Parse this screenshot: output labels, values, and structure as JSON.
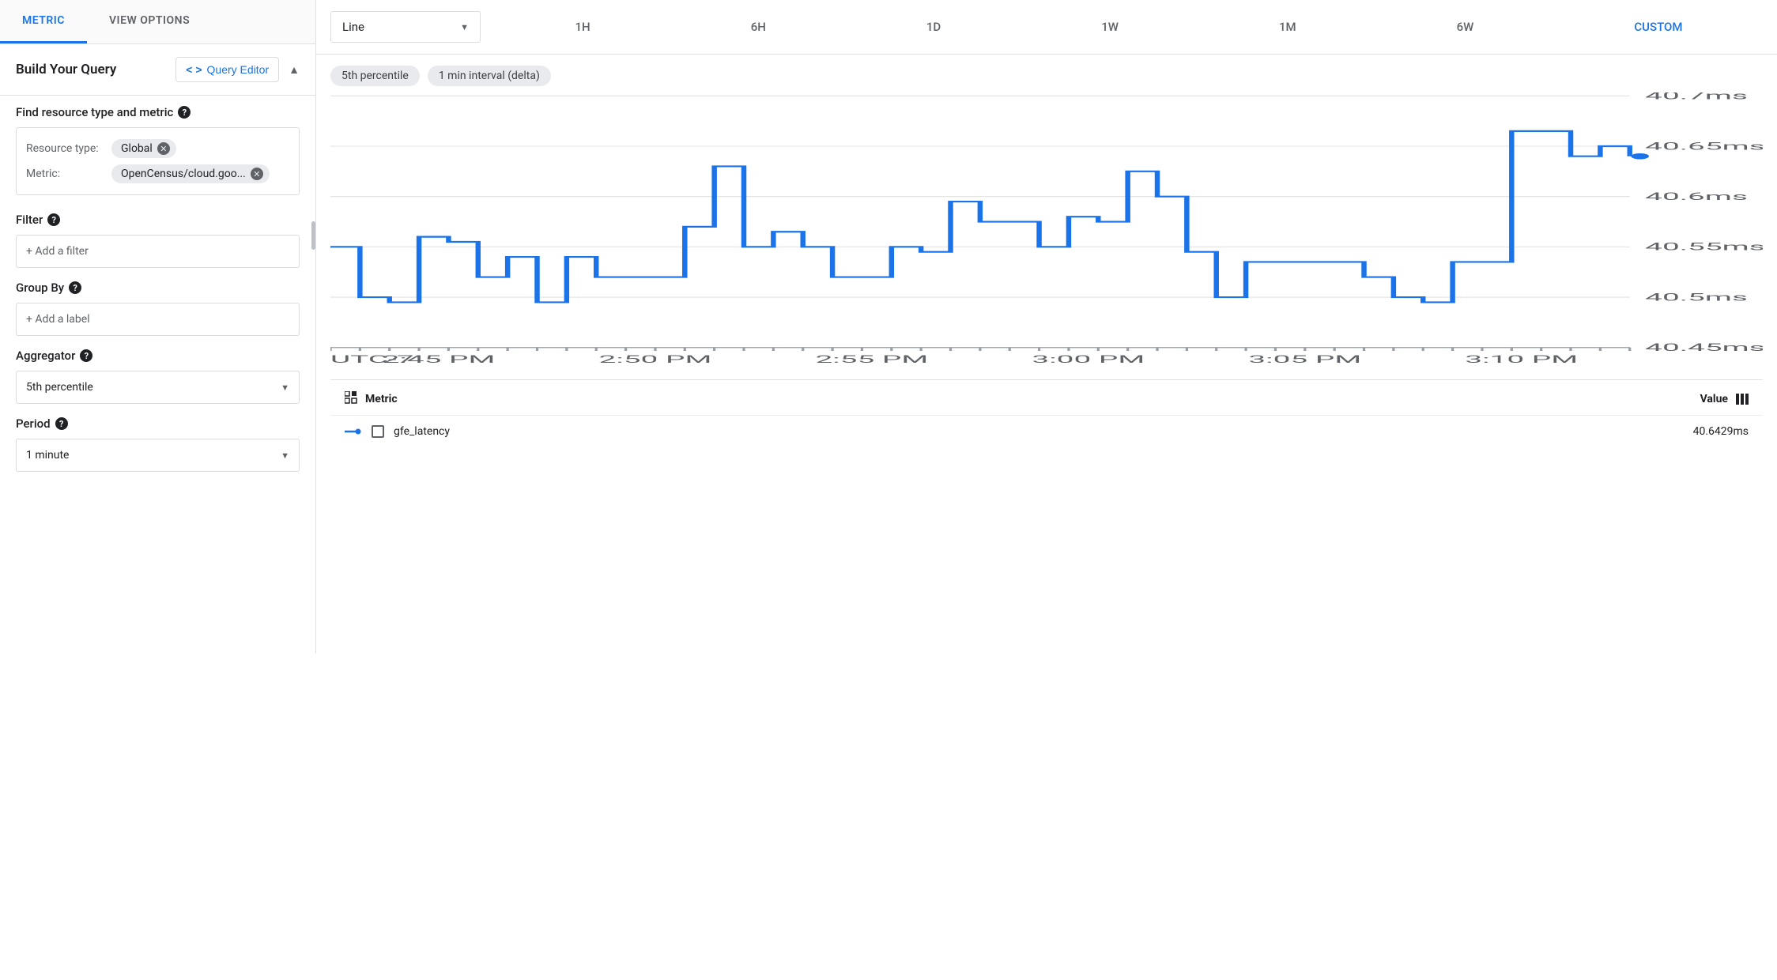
{
  "tabs": {
    "metric": "METRIC",
    "view_options": "VIEW OPTIONS",
    "active": "metric"
  },
  "query": {
    "title": "Build Your Query",
    "editor_btn": "Query Editor",
    "find_label": "Find resource type and metric",
    "resource_type_label": "Resource type:",
    "resource_type_value": "Global",
    "metric_label": "Metric:",
    "metric_value": "OpenCensus/cloud.goo...",
    "filter_label": "Filter",
    "filter_placeholder": "+ Add a filter",
    "groupby_label": "Group By",
    "groupby_placeholder": "+ Add a label",
    "aggregator_label": "Aggregator",
    "aggregator_value": "5th percentile",
    "period_label": "Period",
    "period_value": "1 minute"
  },
  "controls": {
    "chart_type": "Line",
    "time_ranges": [
      "1H",
      "6H",
      "1D",
      "1W",
      "1M",
      "6W",
      "CUSTOM"
    ],
    "active_range": "CUSTOM"
  },
  "pills": [
    "5th percentile",
    "1 min interval (delta)"
  ],
  "chart": {
    "type": "line",
    "series_color": "#1a73e8",
    "grid_color": "#e0e0e0",
    "ylim": [
      40.45,
      40.7
    ],
    "y_ticks": [
      40.45,
      40.5,
      40.55,
      40.6,
      40.65,
      40.7
    ],
    "y_tick_labels": [
      "40.45ms",
      "40.5ms",
      "40.55ms",
      "40.6ms",
      "40.65ms",
      "40.7ms"
    ],
    "x_tz": "UTC-7",
    "x_ticks": [
      "2:45 PM",
      "2:50 PM",
      "2:55 PM",
      "3:00 PM",
      "3:05 PM",
      "3:10 PM"
    ],
    "data": [
      40.55,
      40.5,
      40.495,
      40.56,
      40.555,
      40.52,
      40.54,
      40.495,
      40.54,
      40.52,
      40.52,
      40.52,
      40.57,
      40.63,
      40.55,
      40.565,
      40.55,
      40.52,
      40.52,
      40.55,
      40.545,
      40.595,
      40.575,
      40.575,
      40.55,
      40.58,
      40.575,
      40.625,
      40.6,
      40.545,
      40.5,
      40.535,
      40.535,
      40.535,
      40.535,
      40.52,
      40.5,
      40.495,
      40.535,
      40.535,
      40.665,
      40.665,
      40.64,
      40.65,
      40.64
    ],
    "end_dot_value": 40.64
  },
  "legend": {
    "metric_header": "Metric",
    "value_header": "Value",
    "series_name": "gfe_latency",
    "series_value": "40.6429ms"
  }
}
